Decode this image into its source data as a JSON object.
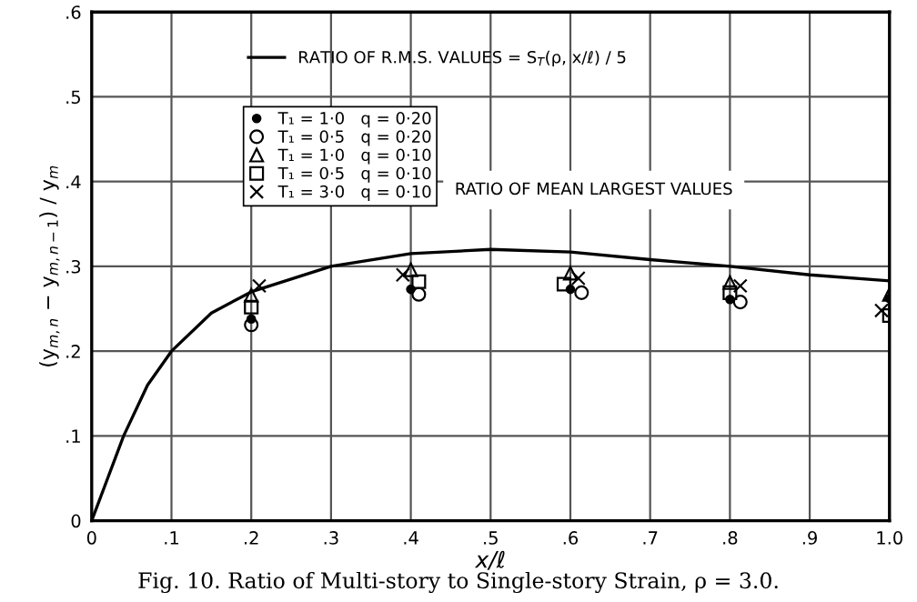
{
  "chart_data": {
    "type": "scatter",
    "xlabel": "x/ℓ",
    "ylabel": "(y$_{m,n}$ − y$_{m,n−1}$) / y$_{m}$",
    "annotations": [
      "RATIO OF MEAN LARGEST VALUES",
      "Fig. 10. Ratio of Multi-story to Single-story Strain, ρ = 3.0."
    ],
    "xlim": [
      0,
      1.0
    ],
    "ylim": [
      0,
      0.6
    ],
    "xticks": [
      {
        "value": 0,
        "label": "0"
      },
      {
        "value": 0.1,
        "label": ".1"
      },
      {
        "value": 0.2,
        "label": ".2"
      },
      {
        "value": 0.3,
        "label": ".3"
      },
      {
        "value": 0.4,
        "label": ".4"
      },
      {
        "value": 0.5,
        "label": ".5"
      },
      {
        "value": 0.6,
        "label": ".6"
      },
      {
        "value": 0.7,
        "label": ".7"
      },
      {
        "value": 0.8,
        "label": ".8"
      },
      {
        "value": 0.9,
        "label": ".9"
      },
      {
        "value": 1.0,
        "label": "1.0"
      }
    ],
    "yticks": [
      {
        "value": 0,
        "label": "0"
      },
      {
        "value": 0.1,
        "label": ".1"
      },
      {
        "value": 0.2,
        "label": ".2"
      },
      {
        "value": 0.3,
        "label": ".3"
      },
      {
        "value": 0.4,
        "label": ".4"
      },
      {
        "value": 0.5,
        "label": ".5"
      },
      {
        "value": 0.6,
        "label": ".6"
      }
    ],
    "grid": true,
    "legend": "top left",
    "series": [
      {
        "type": "line",
        "name": "RATIO OF R.M.S. VALUES = S$_{T}$(ρ, x/ℓ) / 5",
        "color": "#000000",
        "line_style": "solid",
        "marker": "none",
        "x": [
          0,
          0.02,
          0.04,
          0.07,
          0.1,
          0.15,
          0.2,
          0.3,
          0.4,
          0.5,
          0.6,
          0.7,
          0.8,
          0.9,
          1.0
        ],
        "values": [
          0,
          0.05,
          0.1,
          0.16,
          0.2,
          0.245,
          0.27,
          0.3,
          0.315,
          0.32,
          0.317,
          0.308,
          0.3,
          0.29,
          0.283
        ]
      },
      {
        "name": "T₁ = 1·0   q = 0·20",
        "color": "#000000",
        "marker": "dot",
        "x": [
          0.2,
          0.4,
          0.6,
          0.8,
          1.0
        ],
        "values": [
          0.238,
          0.273,
          0.273,
          0.261,
          0.262
        ]
      },
      {
        "name": "T₁ = 0·5   q = 0·20",
        "color": "#000000",
        "marker": "circle",
        "x": [
          0.2,
          0.41,
          0.614,
          0.813
        ],
        "values": [
          0.231,
          0.267,
          0.269,
          0.258
        ]
      },
      {
        "name": "T₁ = 1·0   q = 0·10",
        "color": "#000000",
        "marker": "triangle",
        "x": [
          0.2,
          0.4,
          0.6,
          0.8,
          1.0
        ],
        "values": [
          0.266,
          0.296,
          0.292,
          0.281,
          0.267
        ]
      },
      {
        "name": "T₁ = 0·5   q = 0·10",
        "color": "#000000",
        "marker": "square",
        "x": [
          0.2,
          0.41,
          0.592,
          0.8,
          1.0
        ],
        "values": [
          0.252,
          0.282,
          0.279,
          0.269,
          0.242
        ]
      },
      {
        "name": "T₁ = 3·0   q = 0·10",
        "color": "#000000",
        "marker": "cross",
        "x": [
          0.21,
          0.39,
          0.61,
          0.813,
          0.99
        ],
        "values": [
          0.277,
          0.29,
          0.286,
          0.277,
          0.248
        ]
      }
    ]
  }
}
